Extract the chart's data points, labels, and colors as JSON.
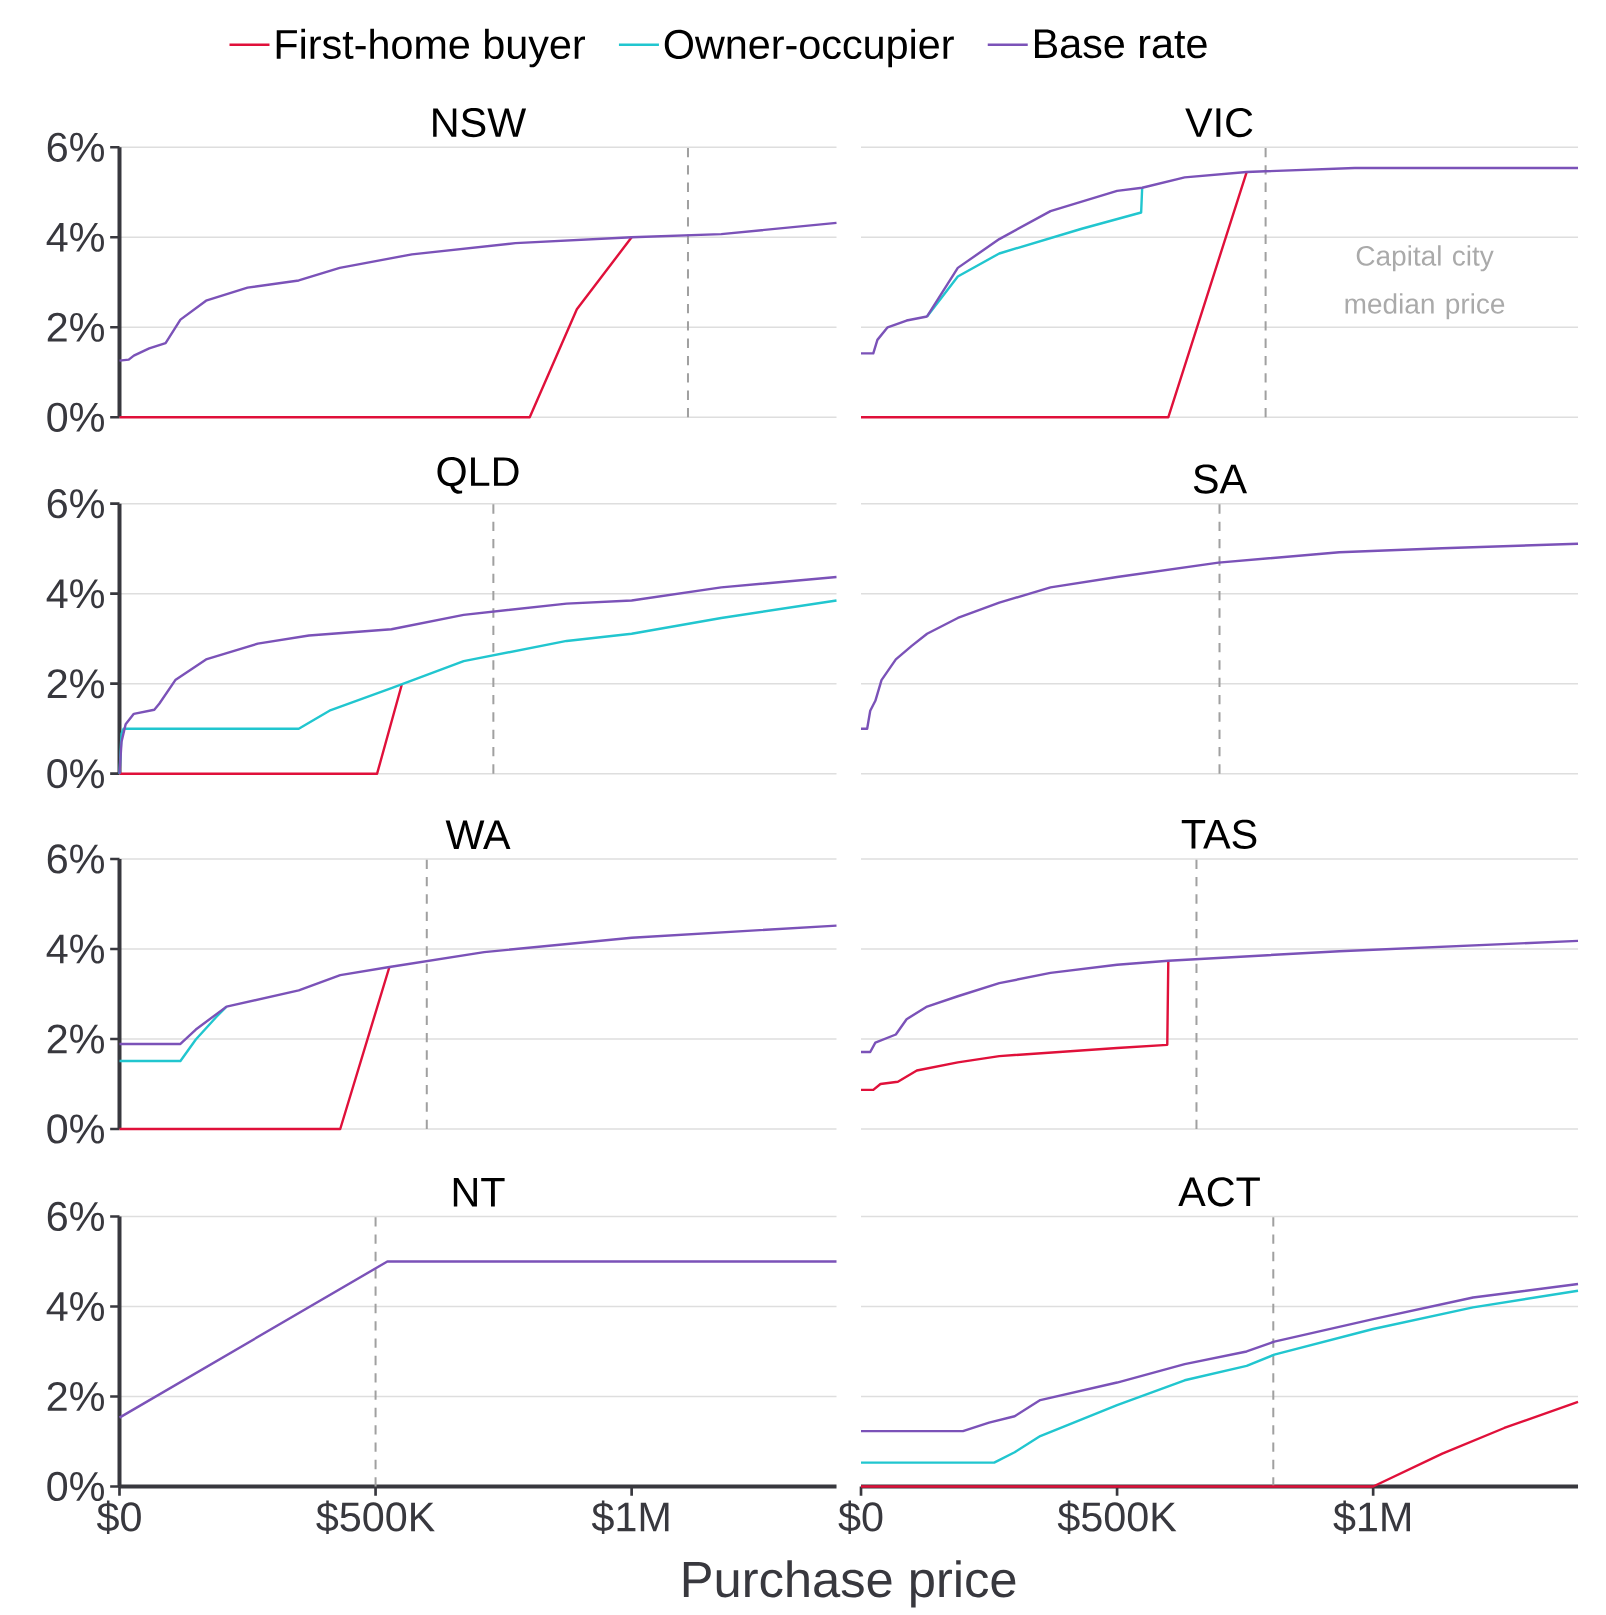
{
  "chart_data": [
    {
      "type": "line",
      "title": "NSW",
      "grid": "y",
      "tick_labels": "y",
      "xlim": [
        0,
        1400000
      ],
      "ylim": [
        0,
        6
      ],
      "yticks": [
        {
          "value": 0,
          "label": "0%"
        },
        {
          "value": 2,
          "label": "2%"
        },
        {
          "value": 4,
          "label": "4%"
        },
        {
          "value": 6,
          "label": "6%"
        }
      ],
      "ref_lines": [
        {
          "axis": "x",
          "value": 1110000,
          "color": "#a0a0a0",
          "line_style": "dashed"
        }
      ],
      "series": [
        {
          "color": "#e0103a",
          "x": [
            0,
            801000,
            893000,
            1000000
          ],
          "values": [
            0,
            0,
            2.4,
            4.0
          ]
        },
        {
          "color": "#7b52b8",
          "x": [
            0,
            18000,
            28000,
            58000,
            90000,
            119000,
            169000,
            250000,
            350000,
            430000,
            571000,
            773000,
            1000000,
            1175000,
            1400000
          ],
          "values": [
            1.26,
            1.28,
            1.37,
            1.53,
            1.65,
            2.17,
            2.59,
            2.88,
            3.04,
            3.32,
            3.62,
            3.87,
            4.0,
            4.07,
            4.32
          ]
        }
      ]
    },
    {
      "type": "line",
      "title": "VIC",
      "legend": "top",
      "grid": "y",
      "tick_labels": false,
      "xlim": [
        0,
        1400000
      ],
      "ylim": [
        0,
        6
      ],
      "yticks": [
        {
          "value": 0,
          "label": null
        },
        {
          "value": 2,
          "label": null
        },
        {
          "value": 4,
          "label": null
        },
        {
          "value": 6,
          "label": null
        }
      ],
      "ref_lines": [
        {
          "axis": "x",
          "value": 790000,
          "color": "#a0a0a0",
          "line_style": "dashed"
        }
      ],
      "annotations": [
        "Capital city median price"
      ],
      "series": [
        {
          "name": "First-home buyer",
          "color": "#e0103a",
          "x": [
            0,
            600000,
            753000
          ],
          "values": [
            0,
            0,
            5.45
          ]
        },
        {
          "name": "Owner-occupier",
          "color": "#21c6cf",
          "x": [
            129000,
            189000,
            270000,
            431000,
            547000,
            549000
          ],
          "values": [
            2.24,
            3.13,
            3.64,
            4.19,
            4.55,
            5.1
          ]
        },
        {
          "name": "Base rate",
          "color": "#7b52b8",
          "x": [
            0,
            24000,
            32000,
            52000,
            89000,
            129000,
            189000,
            270000,
            370000,
            500000,
            549000,
            632000,
            753000,
            964000,
            1400000
          ],
          "values": [
            1.42,
            1.42,
            1.72,
            2.0,
            2.15,
            2.24,
            3.32,
            3.96,
            4.58,
            5.03,
            5.1,
            5.33,
            5.45,
            5.54,
            5.54
          ]
        }
      ]
    },
    {
      "type": "line",
      "title": "QLD",
      "grid": "y",
      "tick_labels": "y",
      "xlim": [
        0,
        1400000
      ],
      "ylim": [
        0,
        6
      ],
      "yticks": [
        {
          "value": 0,
          "label": "0%"
        },
        {
          "value": 2,
          "label": "2%"
        },
        {
          "value": 4,
          "label": "4%"
        },
        {
          "value": 6,
          "label": "6%"
        }
      ],
      "ref_lines": [
        {
          "axis": "x",
          "value": 730000,
          "color": "#a0a0a0",
          "line_style": "dashed"
        }
      ],
      "series": [
        {
          "color": "#e0103a",
          "x": [
            0,
            503000,
            551000
          ],
          "values": [
            0,
            0,
            1.97
          ]
        },
        {
          "color": "#21c6cf",
          "x": [
            0,
            4000,
            8000,
            350000,
            410000,
            531000,
            672000,
            873000,
            1000000,
            1175000,
            1400000
          ],
          "values": [
            0,
            0.89,
            1.0,
            1.0,
            1.4,
            1.9,
            2.5,
            2.95,
            3.11,
            3.46,
            3.85
          ]
        },
        {
          "color": "#7b52b8",
          "x": [
            0,
            4000,
            12000,
            28000,
            68000,
            78000,
            109000,
            169000,
            270000,
            370000,
            531000,
            672000,
            873000,
            1000000,
            1175000,
            1400000
          ],
          "values": [
            0,
            0.71,
            1.1,
            1.33,
            1.42,
            1.56,
            2.08,
            2.54,
            2.89,
            3.07,
            3.21,
            3.53,
            3.78,
            3.85,
            4.14,
            4.37
          ]
        }
      ]
    },
    {
      "type": "line",
      "title": "SA",
      "grid": "y",
      "tick_labels": false,
      "xlim": [
        0,
        1400000
      ],
      "ylim": [
        0,
        6
      ],
      "yticks": [
        {
          "value": 0,
          "label": null
        },
        {
          "value": 2,
          "label": null
        },
        {
          "value": 4,
          "label": null
        },
        {
          "value": 6,
          "label": null
        }
      ],
      "ref_lines": [
        {
          "axis": "x",
          "value": 700000,
          "color": "#a0a0a0",
          "line_style": "dashed"
        }
      ],
      "series": [
        {
          "color": "#7b52b8",
          "x": [
            0,
            12000,
            18000,
            28000,
            40000,
            68000,
            99000,
            129000,
            189000,
            270000,
            370000,
            500000,
            698000,
            934000,
            1135000,
            1400000
          ],
          "values": [
            1.0,
            1.0,
            1.4,
            1.62,
            2.08,
            2.54,
            2.84,
            3.11,
            3.46,
            3.8,
            4.14,
            4.37,
            4.69,
            4.92,
            5.01,
            5.11
          ]
        }
      ]
    },
    {
      "type": "line",
      "title": "WA",
      "grid": "y",
      "tick_labels": "y",
      "xlim": [
        0,
        1400000
      ],
      "ylim": [
        0,
        6
      ],
      "yticks": [
        {
          "value": 0,
          "label": "0%"
        },
        {
          "value": 2,
          "label": "2%"
        },
        {
          "value": 4,
          "label": "4%"
        },
        {
          "value": 6,
          "label": "6%"
        }
      ],
      "ref_lines": [
        {
          "axis": "x",
          "value": 600000,
          "color": "#a0a0a0",
          "line_style": "dashed"
        }
      ],
      "series": [
        {
          "color": "#e0103a",
          "x": [
            0,
            431000,
            527000
          ],
          "values": [
            0,
            0,
            3.6
          ]
        },
        {
          "color": "#21c6cf",
          "x": [
            0,
            119000,
            149000,
            189000,
            209000
          ],
          "values": [
            1.51,
            1.51,
            1.99,
            2.49,
            2.72
          ]
        },
        {
          "color": "#7b52b8",
          "x": [
            0,
            119000,
            149000,
            209000,
            350000,
            431000,
            527000,
            712000,
            1000000,
            1400000
          ],
          "values": [
            1.89,
            1.89,
            2.21,
            2.72,
            3.08,
            3.42,
            3.6,
            3.93,
            4.25,
            4.52
          ]
        }
      ]
    },
    {
      "type": "line",
      "title": "TAS",
      "grid": "y",
      "tick_labels": false,
      "xlim": [
        0,
        1400000
      ],
      "ylim": [
        0,
        6
      ],
      "yticks": [
        {
          "value": 0,
          "label": null
        },
        {
          "value": 2,
          "label": null
        },
        {
          "value": 4,
          "label": null
        },
        {
          "value": 6,
          "label": null
        }
      ],
      "ref_lines": [
        {
          "axis": "x",
          "value": 655000,
          "color": "#a0a0a0",
          "line_style": "dashed"
        }
      ],
      "series": [
        {
          "color": "#e0103a",
          "x": [
            0,
            24000,
            38000,
            72000,
            109000,
            189000,
            270000,
            500000,
            598000,
            600000
          ],
          "values": [
            0.87,
            0.87,
            1.0,
            1.05,
            1.3,
            1.48,
            1.62,
            1.8,
            1.87,
            3.74
          ]
        },
        {
          "color": "#7b52b8",
          "x": [
            0,
            18000,
            28000,
            68000,
            89000,
            129000,
            189000,
            270000,
            370000,
            500000,
            600000,
            934000,
            1400000
          ],
          "values": [
            1.71,
            1.71,
            1.92,
            2.1,
            2.44,
            2.72,
            2.95,
            3.24,
            3.47,
            3.65,
            3.74,
            3.95,
            4.18
          ]
        }
      ]
    },
    {
      "type": "line",
      "title": "NT",
      "xlabel": "Purchase price",
      "grid": "y",
      "xlim": [
        0,
        1400000
      ],
      "ylim": [
        0,
        6
      ],
      "xticks": [
        {
          "value": 0,
          "label": "$0"
        },
        {
          "value": 500000,
          "label": "$500K"
        },
        {
          "value": 1000000,
          "label": "$1M"
        }
      ],
      "yticks": [
        {
          "value": 0,
          "label": "0%"
        },
        {
          "value": 2,
          "label": "2%"
        },
        {
          "value": 4,
          "label": "4%"
        },
        {
          "value": 6,
          "label": "6%"
        }
      ],
      "ref_lines": [
        {
          "axis": "x",
          "value": 500000,
          "color": "#a0a0a0",
          "line_style": "dashed"
        }
      ],
      "series": [
        {
          "color": "#7b52b8",
          "x": [
            0,
            523000,
            1400000
          ],
          "values": [
            1.53,
            5.0,
            5.0
          ]
        }
      ]
    },
    {
      "type": "line",
      "title": "ACT",
      "grid": "y",
      "tick_labels": "x",
      "xlim": [
        0,
        1400000
      ],
      "ylim": [
        0,
        6
      ],
      "xticks": [
        {
          "value": 0,
          "label": "$0"
        },
        {
          "value": 500000,
          "label": "$500K"
        },
        {
          "value": 1000000,
          "label": "$1M"
        }
      ],
      "yticks": [
        {
          "value": 0,
          "label": null
        },
        {
          "value": 2,
          "label": null
        },
        {
          "value": 4,
          "label": null
        },
        {
          "value": 6,
          "label": null
        }
      ],
      "ref_lines": [
        {
          "axis": "x",
          "value": 805000,
          "color": "#a0a0a0",
          "line_style": "dashed"
        }
      ],
      "series": [
        {
          "color": "#e0103a",
          "x": [
            0,
            1000000,
            1135000,
            1256000,
            1400000
          ],
          "values": [
            0,
            0,
            0.73,
            1.3,
            1.88
          ]
        },
        {
          "color": "#21c6cf",
          "x": [
            0,
            260000,
            300000,
            350000,
            500000,
            632000,
            753000,
            807000,
            1000000,
            1195000,
            1400000
          ],
          "values": [
            0.53,
            0.53,
            0.76,
            1.12,
            1.81,
            2.36,
            2.68,
            2.93,
            3.5,
            3.98,
            4.35
          ]
        },
        {
          "color": "#7b52b8",
          "x": [
            0,
            199000,
            250000,
            300000,
            350000,
            500000,
            632000,
            753000,
            807000,
            1000000,
            1195000,
            1400000
          ],
          "values": [
            1.23,
            1.23,
            1.42,
            1.56,
            1.92,
            2.31,
            2.72,
            3.0,
            3.22,
            3.72,
            4.2,
            4.5
          ]
        }
      ]
    }
  ]
}
